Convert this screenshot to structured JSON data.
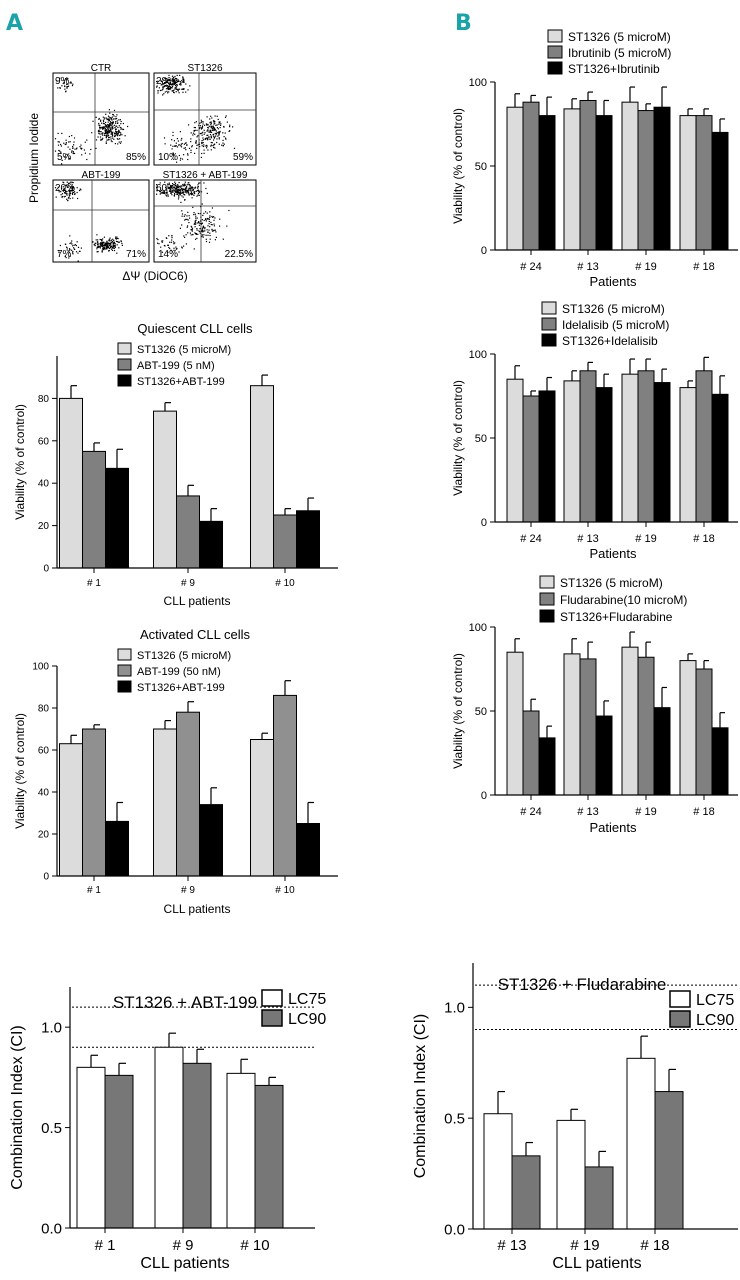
{
  "panel_labels": {
    "a": "A",
    "b": "B"
  },
  "flow": {
    "ylabel": "Propidium Iodide",
    "xlabel": "ΔΨ (DiOC6)",
    "plots": [
      {
        "title": "CTR",
        "ul": "9%",
        "ll": "5%",
        "lr": "85%"
      },
      {
        "title": "ST1326",
        "ul": "28%",
        "ll": "10%",
        "lr": "59%"
      },
      {
        "title": "ABT-199",
        "ul": "20%",
        "ll": "7%",
        "lr": "71%"
      },
      {
        "title": "ST1326 + ABT-199",
        "ul": "60%",
        "ll": "14%",
        "lr": "22.5%"
      }
    ]
  },
  "colors": {
    "light": "#dcdcdc",
    "mid": "#808080",
    "dark": "#000000",
    "white": "#ffffff",
    "ci_gray": "#777777",
    "panel_label": "#1aa3a8"
  },
  "chart_data": [
    {
      "id": "quiescent",
      "type": "bar",
      "title": "Quiescent CLL cells",
      "xlabel": "CLL patients",
      "ylabel": "Viability (% of control)",
      "ylim": [
        0,
        100
      ],
      "yticks": [
        0,
        20,
        40,
        60,
        80
      ],
      "categories": [
        "# 1",
        "# 9",
        "# 10"
      ],
      "series": [
        {
          "name": "ST1326 (5 microM)",
          "color": "#dcdcdc",
          "values": [
            80,
            74,
            86
          ],
          "errors": [
            6,
            4,
            5
          ]
        },
        {
          "name": "ABT-199 (5 nM)",
          "color": "#808080",
          "values": [
            55,
            34,
            25
          ],
          "errors": [
            4,
            5,
            3
          ]
        },
        {
          "name": "ST1326+ABT-199",
          "color": "#000000",
          "values": [
            47,
            22,
            27
          ],
          "errors": [
            9,
            6,
            6
          ]
        }
      ]
    },
    {
      "id": "activated",
      "type": "bar",
      "title": "Activated CLL cells",
      "xlabel": "CLL patients",
      "ylabel": "Viability (% of control)",
      "ylim": [
        0,
        100
      ],
      "yticks": [
        0,
        20,
        40,
        60,
        80,
        100
      ],
      "categories": [
        "# 1",
        "# 9",
        "# 10"
      ],
      "series": [
        {
          "name": "ST1326 (5 microM)",
          "color": "#dcdcdc",
          "values": [
            63,
            70,
            65
          ],
          "errors": [
            4,
            4,
            3
          ]
        },
        {
          "name": "ABT-199 (50 nM)",
          "color": "#909090",
          "values": [
            70,
            78,
            86
          ],
          "errors": [
            2,
            5,
            7
          ]
        },
        {
          "name": "ST1326+ABT-199",
          "color": "#000000",
          "values": [
            26,
            34,
            25
          ],
          "errors": [
            9,
            8,
            10
          ]
        }
      ]
    },
    {
      "id": "ibrutinib",
      "type": "bar",
      "title": "",
      "xlabel": "Patients",
      "ylabel": "Viability (% of control)",
      "ylim": [
        0,
        100
      ],
      "yticks": [
        0,
        50,
        100
      ],
      "categories": [
        "# 24",
        "# 13",
        "# 19",
        "# 18"
      ],
      "series": [
        {
          "name": "ST1326 (5 microM)",
          "color": "#dcdcdc",
          "values": [
            85,
            84,
            88,
            80
          ],
          "errors": [
            8,
            6,
            9,
            4
          ]
        },
        {
          "name": "Ibrutinib (5 microM)",
          "color": "#808080",
          "values": [
            88,
            89,
            83,
            80
          ],
          "errors": [
            4,
            5,
            4,
            4
          ]
        },
        {
          "name": "ST1326+Ibrutinib",
          "color": "#000000",
          "values": [
            80,
            80,
            85,
            70
          ],
          "errors": [
            11,
            9,
            12,
            8
          ]
        }
      ]
    },
    {
      "id": "idelalisib",
      "type": "bar",
      "title": "",
      "xlabel": "Patients",
      "ylabel": "Viability (% of control)",
      "ylim": [
        0,
        100
      ],
      "yticks": [
        0,
        50,
        100
      ],
      "categories": [
        "# 24",
        "# 13",
        "# 19",
        "# 18"
      ],
      "series": [
        {
          "name": "ST1326 (5 microM)",
          "color": "#dcdcdc",
          "values": [
            85,
            84,
            88,
            80
          ],
          "errors": [
            8,
            6,
            9,
            4
          ]
        },
        {
          "name": "Idelalisib (5 microM)",
          "color": "#808080",
          "values": [
            75,
            90,
            90,
            90
          ],
          "errors": [
            3,
            5,
            7,
            8
          ]
        },
        {
          "name": "ST1326+Idelalisib",
          "color": "#000000",
          "values": [
            78,
            80,
            83,
            76
          ],
          "errors": [
            8,
            8,
            8,
            11
          ]
        }
      ]
    },
    {
      "id": "fludarabine",
      "type": "bar",
      "title": "",
      "xlabel": "Patients",
      "ylabel": "Viability (% of control)",
      "ylim": [
        0,
        100
      ],
      "yticks": [
        0,
        50,
        100
      ],
      "categories": [
        "# 24",
        "# 13",
        "# 19",
        "# 18"
      ],
      "series": [
        {
          "name": "ST1326 (5 microM)",
          "color": "#dcdcdc",
          "values": [
            85,
            84,
            88,
            80
          ],
          "errors": [
            8,
            9,
            9,
            4
          ]
        },
        {
          "name": "Fludarabine(10 microM)",
          "color": "#808080",
          "values": [
            50,
            81,
            82,
            75
          ],
          "errors": [
            7,
            10,
            9,
            5
          ]
        },
        {
          "name": "ST1326+Fludarabine",
          "color": "#000000",
          "values": [
            34,
            47,
            52,
            40
          ],
          "errors": [
            7,
            9,
            12,
            9
          ]
        }
      ]
    },
    {
      "id": "ci_abt",
      "type": "bar",
      "title": "ST1326 + ABT-199",
      "xlabel": "CLL patients",
      "ylabel": "Combination Index (CI)",
      "ylim": [
        0,
        1.2
      ],
      "yticks": [
        0.0,
        0.5,
        1.0
      ],
      "yticklabels": [
        "0.0",
        "0.5",
        "1.0"
      ],
      "reference_lines": [
        0.9,
        1.1
      ],
      "categories": [
        "# 1",
        "# 9",
        "# 10"
      ],
      "series": [
        {
          "name": "LC75",
          "color": "#ffffff",
          "values": [
            0.8,
            0.9,
            0.77
          ],
          "errors": [
            0.06,
            0.07,
            0.07
          ]
        },
        {
          "name": "LC90",
          "color": "#777777",
          "values": [
            0.76,
            0.82,
            0.71
          ],
          "errors": [
            0.06,
            0.07,
            0.04
          ]
        }
      ]
    },
    {
      "id": "ci_flu",
      "type": "bar",
      "title": "ST1326 + Fludarabine",
      "xlabel": "CLL patients",
      "ylabel": "Combination Index (CI)",
      "ylim": [
        0,
        1.2
      ],
      "yticks": [
        0.0,
        0.5,
        1.0
      ],
      "yticklabels": [
        "0.0",
        "0.5",
        "1.0"
      ],
      "reference_lines": [
        0.9,
        1.1
      ],
      "categories": [
        "# 13",
        "# 19",
        "# 18"
      ],
      "series": [
        {
          "name": "LC75",
          "color": "#ffffff",
          "values": [
            0.52,
            0.49,
            0.77
          ],
          "errors": [
            0.1,
            0.05,
            0.1
          ]
        },
        {
          "name": "LC90",
          "color": "#777777",
          "values": [
            0.33,
            0.28,
            0.62
          ],
          "errors": [
            0.06,
            0.07,
            0.1
          ]
        }
      ]
    }
  ]
}
